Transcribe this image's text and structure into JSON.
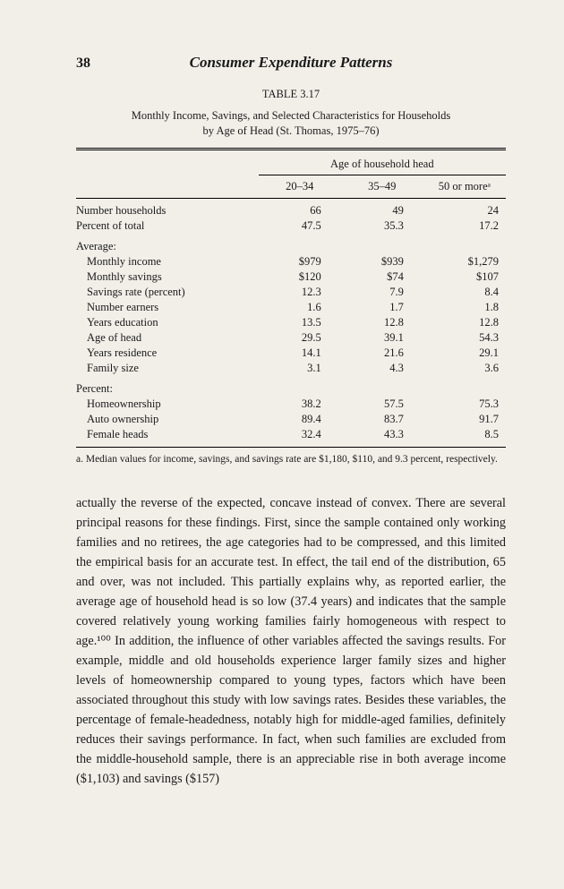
{
  "pageNumber": "38",
  "chapterTitle": "Consumer Expenditure Patterns",
  "tableLabel": "TABLE 3.17",
  "tableCaptionLine1": "Monthly Income, Savings, and Selected Characteristics for Households",
  "tableCaptionLine2": "by Age of Head (St. Thomas, 1975–76)",
  "table": {
    "spanningHeader": "Age of household head",
    "colHeaders": [
      "20–34",
      "35–49",
      "50 or moreᵃ"
    ],
    "rows": [
      {
        "label": "Number households",
        "indent": false,
        "vals": [
          "66",
          "49",
          "24"
        ]
      },
      {
        "label": "Percent of total",
        "indent": false,
        "vals": [
          "47.5",
          "35.3",
          "17.2"
        ]
      }
    ],
    "groupA": {
      "head": "Average:",
      "rows": [
        {
          "label": "Monthly income",
          "vals": [
            "$979",
            "$939",
            "$1,279"
          ]
        },
        {
          "label": "Monthly savings",
          "vals": [
            "$120",
            "$74",
            "$107"
          ]
        },
        {
          "label": "Savings rate (percent)",
          "vals": [
            "12.3",
            "7.9",
            "8.4"
          ]
        },
        {
          "label": "Number earners",
          "vals": [
            "1.6",
            "1.7",
            "1.8"
          ]
        },
        {
          "label": "Years education",
          "vals": [
            "13.5",
            "12.8",
            "12.8"
          ]
        },
        {
          "label": "Age of head",
          "vals": [
            "29.5",
            "39.1",
            "54.3"
          ]
        },
        {
          "label": "Years residence",
          "vals": [
            "14.1",
            "21.6",
            "29.1"
          ]
        },
        {
          "label": "Family size",
          "vals": [
            "3.1",
            "4.3",
            "3.6"
          ]
        }
      ]
    },
    "groupB": {
      "head": "Percent:",
      "rows": [
        {
          "label": "Homeownership",
          "vals": [
            "38.2",
            "57.5",
            "75.3"
          ]
        },
        {
          "label": "Auto ownership",
          "vals": [
            "89.4",
            "83.7",
            "91.7"
          ]
        },
        {
          "label": "Female heads",
          "vals": [
            "32.4",
            "43.3",
            "8.5"
          ]
        }
      ]
    }
  },
  "footnote": "a.  Median values for income, savings, and savings rate are $1,180, $110, and 9.3 percent, respectively.",
  "bodyText": "actually the reverse of the expected, concave instead of convex. There are several principal reasons for these findings. First, since the sample contained only working families and no retirees, the age categories had to be compressed, and this limited the empirical basis for an accurate test. In effect, the tail end of the distribution, 65 and over, was not included. This partially explains why, as reported earlier, the average age of household head is so low (37.4 years) and indicates that the sample covered relatively young working families fairly homogeneous with respect to age.¹⁰⁰ In addition, the influence of other variables affected the savings results. For example, middle and old households experience larger family sizes and higher levels of homeownership compared to young types, factors which have been associated throughout this study with low savings rates. Besides these variables, the percentage of female-headedness, notably high for middle-aged families, definitely reduces their savings performance. In fact, when such families are excluded from the middle-household sample, there is an appreciable rise in both average income ($1,103) and savings ($157)"
}
